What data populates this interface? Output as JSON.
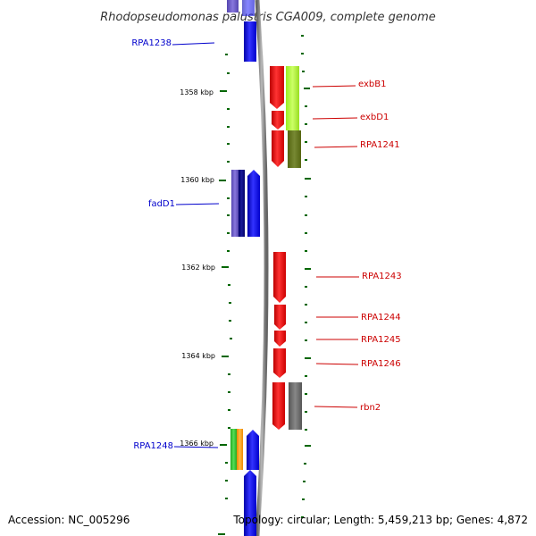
{
  "header": {
    "title": "Rhodopseudomonas palustris CGA009, complete genome"
  },
  "footer": {
    "accession": "Accession: NC_005296",
    "topology": "Topology: circular; Length: 5,459,213 bp; Genes: 4,872"
  },
  "ruler": {
    "labels": [
      "1358 kbp",
      "1360 kbp",
      "1362 kbp",
      "1364 kbp",
      "1366 kbp"
    ]
  },
  "colors": {
    "backbone": "#999999",
    "forward_label": "#cc0000",
    "reverse_label": "#0000cc",
    "tick": "#006600",
    "cds_forward": "#ff0000",
    "cds_reverse": "#0000ff",
    "cog_light_green": "#b3ff33",
    "cog_olive": "#667722",
    "cog_navy": "#000080",
    "cog_slate": "#6a5acd",
    "cog_gray": "#777777",
    "cog_green": "#33bb33",
    "cog_orange": "#ff9900"
  },
  "genes": {
    "forward": [
      {
        "name": "exbB1"
      },
      {
        "name": "exbD1"
      },
      {
        "name": "RPA1241"
      },
      {
        "name": "RPA1243"
      },
      {
        "name": "RPA1244"
      },
      {
        "name": "RPA1245"
      },
      {
        "name": "RPA1246"
      },
      {
        "name": "rbn2"
      }
    ],
    "reverse": [
      {
        "name": "RPA1238"
      },
      {
        "name": "fadD1"
      },
      {
        "name": "RPA1248"
      }
    ]
  }
}
